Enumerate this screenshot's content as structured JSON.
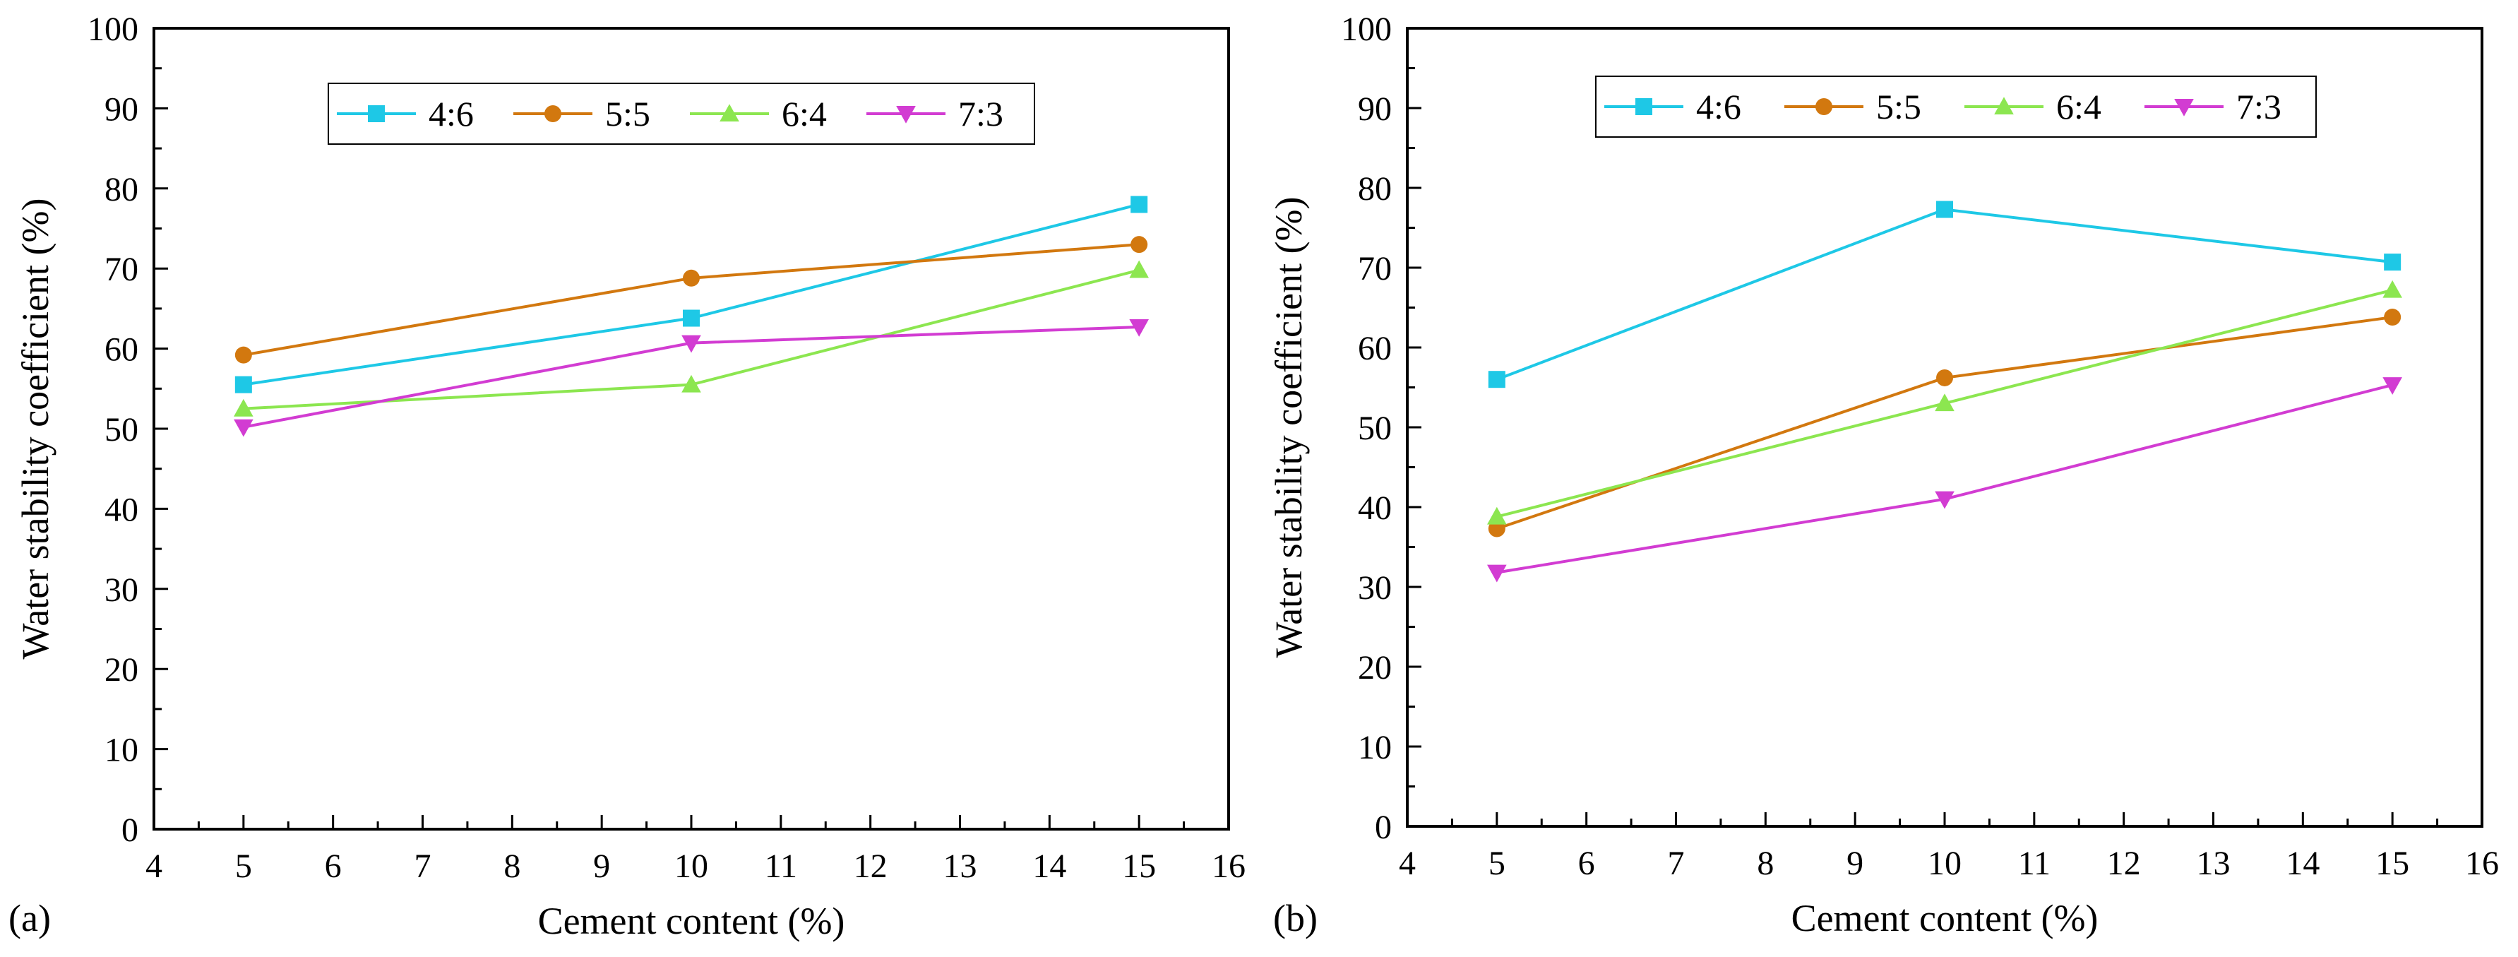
{
  "chart_data": [
    {
      "panel": "(a)",
      "type": "line",
      "xlabel": "Cement content (%)",
      "ylabel": "Water stability coefficient (%)",
      "xlim": [
        4,
        16
      ],
      "ylim": [
        0,
        100
      ],
      "x_ticks": [
        4,
        5,
        6,
        7,
        8,
        9,
        10,
        11,
        12,
        13,
        14,
        15,
        16
      ],
      "y_ticks": [
        0,
        10,
        20,
        30,
        40,
        50,
        60,
        70,
        80,
        90,
        100
      ],
      "x": [
        5,
        10,
        15
      ],
      "legend_position": "top-center",
      "grid": false,
      "series": [
        {
          "name": "4:6",
          "color": "#1EC8E6",
          "marker": "square",
          "values": [
            55.5,
            63.8,
            78.0
          ]
        },
        {
          "name": "5:5",
          "color": "#D2780F",
          "marker": "circle",
          "values": [
            59.2,
            68.8,
            73.0
          ]
        },
        {
          "name": "6:4",
          "color": "#8CE650",
          "marker": "triangle-up",
          "values": [
            52.5,
            55.5,
            69.8
          ]
        },
        {
          "name": "7:3",
          "color": "#D23CD2",
          "marker": "triangle-down",
          "values": [
            50.2,
            60.7,
            62.7
          ]
        }
      ]
    },
    {
      "panel": "(b)",
      "type": "line",
      "xlabel": "Cement content (%)",
      "ylabel": "Water stability coefficient (%)",
      "xlim": [
        4,
        16
      ],
      "ylim": [
        0,
        100
      ],
      "x_ticks": [
        4,
        5,
        6,
        7,
        8,
        9,
        10,
        11,
        12,
        13,
        14,
        15,
        16
      ],
      "y_ticks": [
        0,
        10,
        20,
        30,
        40,
        50,
        60,
        70,
        80,
        90,
        100
      ],
      "x": [
        5,
        10,
        15
      ],
      "legend_position": "top-center",
      "grid": false,
      "series": [
        {
          "name": "4:6",
          "color": "#1EC8E6",
          "marker": "square",
          "values": [
            56.0,
            77.3,
            70.7
          ]
        },
        {
          "name": "5:5",
          "color": "#D2780F",
          "marker": "circle",
          "values": [
            37.3,
            56.2,
            63.8
          ]
        },
        {
          "name": "6:4",
          "color": "#8CE650",
          "marker": "triangle-up",
          "values": [
            38.8,
            53.0,
            67.2
          ]
        },
        {
          "name": "7:3",
          "color": "#D23CD2",
          "marker": "triangle-down",
          "values": [
            31.8,
            41.0,
            55.3
          ]
        }
      ]
    }
  ]
}
